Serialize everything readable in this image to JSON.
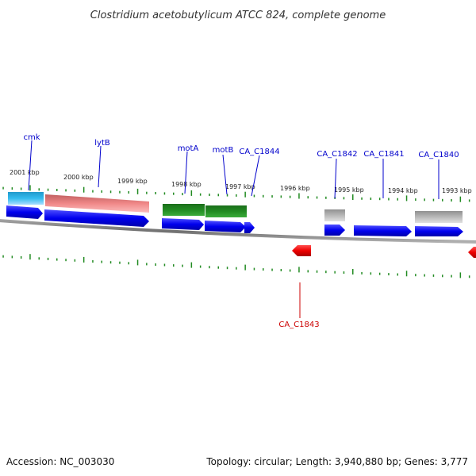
{
  "title": "Clostridium acetobutylicum ATCC 824, complete genome",
  "footer": {
    "accession": "Accession: NC_003030",
    "summary": "Topology: circular; Length: 3,940,880 bp; Genes: 3,777"
  },
  "tick_labels": [
    "2001 kbp",
    "2000 kbp",
    "1999 kbp",
    "1998 kbp",
    "1997 kbp",
    "1996 kbp",
    "1995 kbp",
    "1994 kbp",
    "1993 kbp"
  ],
  "gene_labels": {
    "cmk": "cmk",
    "lytB": "lytB",
    "motA": "motA",
    "motB": "motB",
    "CA_C1844": "CA_C1844",
    "CA_C1842": "CA_C1842",
    "CA_C1841": "CA_C1841",
    "CA_C1840": "CA_C1840",
    "CA_C1843": "CA_C1843"
  },
  "colors": {
    "gene_blue": "#0000ee",
    "gene_red": "#ee0000",
    "label_blue": "#0000cc",
    "label_red": "#cc0000",
    "tick_green": "#228b22",
    "backbone": "#808080",
    "cyan": "#33bbee",
    "pink": "#f08888",
    "green": "#228b22",
    "gray": "#b8b8b8"
  }
}
